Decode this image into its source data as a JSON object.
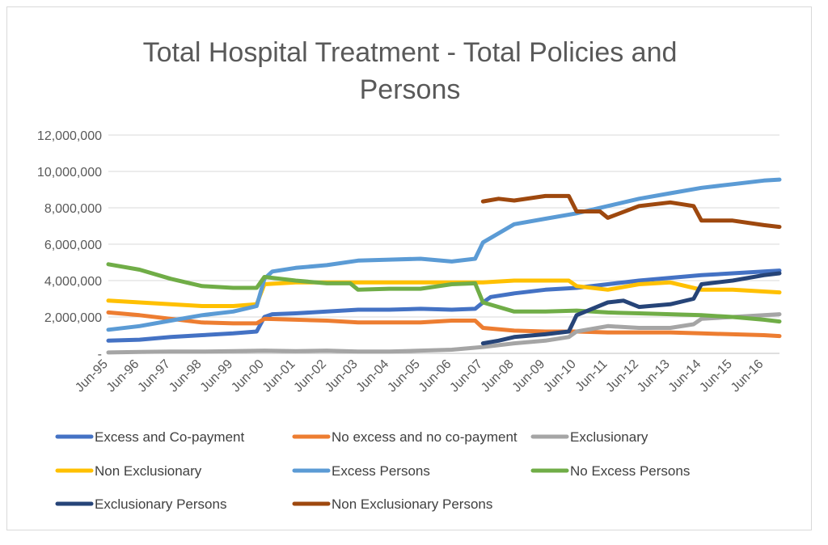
{
  "chart_data": {
    "type": "line",
    "title": "Total Hospital Treatment  - Total Policies and Persons",
    "title_lines": [
      "Total Hospital Treatment  - Total Policies and",
      "Persons"
    ],
    "xlabel": "",
    "ylabel": "",
    "ylim": [
      0,
      12000000
    ],
    "y_ticks": [
      0,
      2000000,
      4000000,
      6000000,
      8000000,
      10000000,
      12000000
    ],
    "y_tick_labels": [
      "-",
      "2,000,000",
      "4,000,000",
      "6,000,000",
      "8,000,000",
      "10,000,000",
      "12,000,000"
    ],
    "x_tick_labels": [
      "Jun-95",
      "Jun-96",
      "Jun-97",
      "Jun-98",
      "Jun-99",
      "Jun-00",
      "Jun-01",
      "Jun-02",
      "Jun-03",
      "Jun-04",
      "Jun-05",
      "Jun-06",
      "Jun-07",
      "Jun-08",
      "Jun-09",
      "Jun-10",
      "Jun-11",
      "Jun-12",
      "Jun-13",
      "Jun-14",
      "Jun-15",
      "Jun-16"
    ],
    "x_range": [
      "Jun-95",
      "Dec-16"
    ],
    "grid": true,
    "legend_position": "bottom",
    "series": [
      {
        "name": "Excess and Co-payment",
        "color": "#4472c4",
        "points": [
          [
            "Jun-95",
            700000
          ],
          [
            "Jun-96",
            750000
          ],
          [
            "Jun-97",
            900000
          ],
          [
            "Jun-98",
            1000000
          ],
          [
            "Jun-99",
            1100000
          ],
          [
            "Mar-00",
            1200000
          ],
          [
            "Jun-00",
            2000000
          ],
          [
            "Sep-00",
            2150000
          ],
          [
            "Jun-01",
            2200000
          ],
          [
            "Jun-02",
            2300000
          ],
          [
            "Jun-03",
            2400000
          ],
          [
            "Jun-04",
            2400000
          ],
          [
            "Jun-05",
            2450000
          ],
          [
            "Jun-06",
            2400000
          ],
          [
            "Mar-07",
            2450000
          ],
          [
            "Jun-07",
            2800000
          ],
          [
            "Sep-07",
            3100000
          ],
          [
            "Jun-08",
            3300000
          ],
          [
            "Jun-09",
            3500000
          ],
          [
            "Jun-10",
            3600000
          ],
          [
            "Jun-11",
            3800000
          ],
          [
            "Jun-12",
            4000000
          ],
          [
            "Jun-13",
            4150000
          ],
          [
            "Jun-14",
            4300000
          ],
          [
            "Jun-15",
            4400000
          ],
          [
            "Jun-16",
            4500000
          ],
          [
            "Dec-16",
            4550000
          ]
        ]
      },
      {
        "name": "No excess and no co-payment",
        "color": "#ed7d31",
        "points": [
          [
            "Jun-95",
            2250000
          ],
          [
            "Jun-96",
            2100000
          ],
          [
            "Jun-97",
            1900000
          ],
          [
            "Jun-98",
            1700000
          ],
          [
            "Jun-99",
            1650000
          ],
          [
            "Mar-00",
            1650000
          ],
          [
            "Jun-00",
            1900000
          ],
          [
            "Jun-01",
            1850000
          ],
          [
            "Jun-02",
            1800000
          ],
          [
            "Jun-03",
            1700000
          ],
          [
            "Jun-04",
            1700000
          ],
          [
            "Jun-05",
            1700000
          ],
          [
            "Jun-06",
            1800000
          ],
          [
            "Mar-07",
            1800000
          ],
          [
            "Jun-07",
            1400000
          ],
          [
            "Jun-08",
            1250000
          ],
          [
            "Jun-09",
            1200000
          ],
          [
            "Jun-10",
            1200000
          ],
          [
            "Jun-11",
            1150000
          ],
          [
            "Jun-12",
            1150000
          ],
          [
            "Jun-13",
            1150000
          ],
          [
            "Jun-14",
            1100000
          ],
          [
            "Jun-15",
            1050000
          ],
          [
            "Jun-16",
            1000000
          ],
          [
            "Dec-16",
            950000
          ]
        ]
      },
      {
        "name": "Exclusionary",
        "color": "#a5a5a5",
        "points": [
          [
            "Jun-95",
            50000
          ],
          [
            "Jun-96",
            80000
          ],
          [
            "Jun-97",
            100000
          ],
          [
            "Jun-98",
            100000
          ],
          [
            "Jun-99",
            120000
          ],
          [
            "Jun-00",
            150000
          ],
          [
            "Jun-01",
            120000
          ],
          [
            "Jun-02",
            150000
          ],
          [
            "Jun-03",
            100000
          ],
          [
            "Jun-04",
            100000
          ],
          [
            "Jun-05",
            150000
          ],
          [
            "Jun-06",
            200000
          ],
          [
            "Jun-07",
            350000
          ],
          [
            "Jun-08",
            550000
          ],
          [
            "Jun-09",
            700000
          ],
          [
            "Mar-10",
            900000
          ],
          [
            "Jun-10",
            1200000
          ],
          [
            "Jun-11",
            1500000
          ],
          [
            "Jun-12",
            1400000
          ],
          [
            "Jun-13",
            1400000
          ],
          [
            "Mar-14",
            1600000
          ],
          [
            "Jun-14",
            1900000
          ],
          [
            "Jun-15",
            2000000
          ],
          [
            "Jun-16",
            2100000
          ],
          [
            "Dec-16",
            2150000
          ]
        ]
      },
      {
        "name": "Non Exclusionary",
        "color": "#ffc000",
        "points": [
          [
            "Jun-95",
            2900000
          ],
          [
            "Jun-96",
            2800000
          ],
          [
            "Jun-97",
            2700000
          ],
          [
            "Jun-98",
            2600000
          ],
          [
            "Jun-99",
            2600000
          ],
          [
            "Mar-00",
            2700000
          ],
          [
            "Jun-00",
            3800000
          ],
          [
            "Jun-01",
            3900000
          ],
          [
            "Jun-02",
            3900000
          ],
          [
            "Jun-03",
            3900000
          ],
          [
            "Jun-04",
            3900000
          ],
          [
            "Jun-05",
            3900000
          ],
          [
            "Jun-06",
            3900000
          ],
          [
            "Jun-07",
            3900000
          ],
          [
            "Jun-08",
            4000000
          ],
          [
            "Jun-09",
            4000000
          ],
          [
            "Mar-10",
            4000000
          ],
          [
            "Jun-10",
            3700000
          ],
          [
            "Jun-11",
            3500000
          ],
          [
            "Jun-12",
            3800000
          ],
          [
            "Jun-13",
            3900000
          ],
          [
            "Jun-14",
            3500000
          ],
          [
            "Jun-15",
            3500000
          ],
          [
            "Jun-16",
            3400000
          ],
          [
            "Dec-16",
            3350000
          ]
        ]
      },
      {
        "name": "Excess Persons",
        "color": "#5b9bd5",
        "points": [
          [
            "Jun-95",
            1300000
          ],
          [
            "Jun-96",
            1500000
          ],
          [
            "Jun-97",
            1800000
          ],
          [
            "Jun-98",
            2100000
          ],
          [
            "Jun-99",
            2300000
          ],
          [
            "Mar-00",
            2600000
          ],
          [
            "Jun-00",
            4100000
          ],
          [
            "Sep-00",
            4500000
          ],
          [
            "Jun-01",
            4700000
          ],
          [
            "Jun-02",
            4850000
          ],
          [
            "Jun-03",
            5100000
          ],
          [
            "Jun-04",
            5150000
          ],
          [
            "Jun-05",
            5200000
          ],
          [
            "Jun-06",
            5050000
          ],
          [
            "Mar-07",
            5200000
          ],
          [
            "Jun-07",
            6100000
          ],
          [
            "Jun-08",
            7100000
          ],
          [
            "Jun-09",
            7400000
          ],
          [
            "Jun-10",
            7700000
          ],
          [
            "Jun-11",
            8100000
          ],
          [
            "Jun-12",
            8500000
          ],
          [
            "Jun-13",
            8800000
          ],
          [
            "Jun-14",
            9100000
          ],
          [
            "Jun-15",
            9300000
          ],
          [
            "Jun-16",
            9500000
          ],
          [
            "Dec-16",
            9550000
          ]
        ]
      },
      {
        "name": "No Excess Persons",
        "color": "#70ad47",
        "points": [
          [
            "Jun-95",
            4900000
          ],
          [
            "Jun-96",
            4600000
          ],
          [
            "Jun-97",
            4100000
          ],
          [
            "Jun-98",
            3700000
          ],
          [
            "Jun-99",
            3600000
          ],
          [
            "Mar-00",
            3600000
          ],
          [
            "Jun-00",
            4200000
          ],
          [
            "Jun-01",
            4000000
          ],
          [
            "Jun-02",
            3850000
          ],
          [
            "Mar-03",
            3850000
          ],
          [
            "Jun-03",
            3500000
          ],
          [
            "Jun-04",
            3550000
          ],
          [
            "Jun-05",
            3550000
          ],
          [
            "Jun-06",
            3800000
          ],
          [
            "Mar-07",
            3850000
          ],
          [
            "Jun-07",
            2800000
          ],
          [
            "Jun-08",
            2300000
          ],
          [
            "Jun-09",
            2300000
          ],
          [
            "Jun-10",
            2350000
          ],
          [
            "Jun-11",
            2250000
          ],
          [
            "Jun-12",
            2200000
          ],
          [
            "Jun-13",
            2150000
          ],
          [
            "Jun-14",
            2100000
          ],
          [
            "Jun-15",
            2000000
          ],
          [
            "Jun-16",
            1850000
          ],
          [
            "Dec-16",
            1750000
          ]
        ]
      },
      {
        "name": "Exclusionary Persons",
        "color": "#264478",
        "points": [
          [
            "Jun-07",
            550000
          ],
          [
            "Dec-07",
            700000
          ],
          [
            "Jun-08",
            900000
          ],
          [
            "Jun-09",
            1050000
          ],
          [
            "Mar-10",
            1200000
          ],
          [
            "Jun-10",
            2100000
          ],
          [
            "Jun-11",
            2800000
          ],
          [
            "Dec-11",
            2900000
          ],
          [
            "Jun-12",
            2550000
          ],
          [
            "Jun-13",
            2700000
          ],
          [
            "Mar-14",
            3000000
          ],
          [
            "Jun-14",
            3800000
          ],
          [
            "Jun-15",
            4000000
          ],
          [
            "Jun-16",
            4300000
          ],
          [
            "Dec-16",
            4400000
          ]
        ]
      },
      {
        "name": "Non Exclusionary Persons",
        "color": "#9e480e",
        "points": [
          [
            "Jun-07",
            8350000
          ],
          [
            "Dec-07",
            8500000
          ],
          [
            "Jun-08",
            8400000
          ],
          [
            "Jun-09",
            8650000
          ],
          [
            "Mar-10",
            8650000
          ],
          [
            "Jun-10",
            7800000
          ],
          [
            "Mar-11",
            7800000
          ],
          [
            "Jun-11",
            7450000
          ],
          [
            "Jun-12",
            8100000
          ],
          [
            "Jun-13",
            8300000
          ],
          [
            "Mar-14",
            8100000
          ],
          [
            "Jun-14",
            7300000
          ],
          [
            "Jun-15",
            7300000
          ],
          [
            "Jun-16",
            7050000
          ],
          [
            "Dec-16",
            6950000
          ]
        ]
      }
    ]
  }
}
